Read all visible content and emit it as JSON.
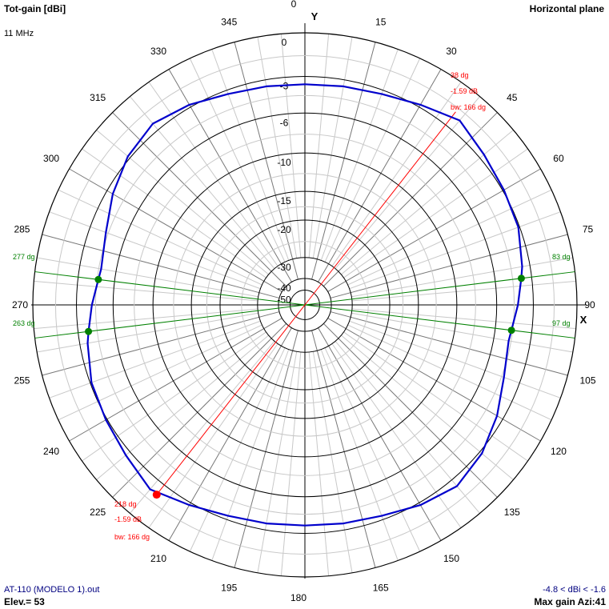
{
  "header": {
    "title": "Tot-gain [dBi]",
    "frequency": "11 MHz",
    "plane": "Horizontal plane"
  },
  "footer": {
    "filename": "AT-110 (MODELO 1).out",
    "elevation": "Elev.= 53",
    "range": "-4.8 < dBi < -1.6",
    "max_gain": "Max gain Azi:41"
  },
  "axis_labels": {
    "y": "Y",
    "x": "X"
  },
  "azimuth_ticks": [
    "0",
    "15",
    "30",
    "45",
    "60",
    "75",
    "90",
    "105",
    "120",
    "135",
    "150",
    "165",
    "180",
    "195",
    "210",
    "225",
    "240",
    "255",
    "270",
    "285",
    "300",
    "315",
    "330",
    "345"
  ],
  "radial_ticks": [
    "0",
    "-3",
    "-6",
    "-10",
    "-15",
    "-20",
    "-30",
    "-40",
    "-50"
  ],
  "markers": {
    "max_red": {
      "angle": "38 dg",
      "level": "-1.59 dB",
      "bw": "bw: 166 dg"
    },
    "back_red": {
      "angle": "218 dg",
      "level": "-1.59 dB",
      "bw": "bw: 166 dg"
    },
    "green": [
      "277 dg",
      "83 dg",
      "263 dg",
      "97 dg"
    ]
  },
  "colors": {
    "pattern": "#0000cc",
    "grid": "#000000",
    "red_marker": "#ff0000",
    "green_marker": "#008000",
    "footer_text": "#000080"
  },
  "chart_data": {
    "type": "polar",
    "title": "Tot-gain [dBi]",
    "plane": "Horizontal plane",
    "frequency_mhz": 11,
    "elevation_deg": 53,
    "radial_scale_db": [
      0,
      -3,
      -6,
      -10,
      -15,
      -20,
      -30,
      -40,
      -50
    ],
    "azimuth_deg": [
      0,
      10,
      20,
      30,
      40,
      50,
      60,
      70,
      80,
      83,
      90,
      97,
      100,
      110,
      120,
      130,
      140,
      150,
      160,
      170,
      180,
      190,
      200,
      210,
      220,
      230,
      240,
      250,
      260,
      263,
      270,
      277,
      280,
      290,
      300,
      310,
      320,
      330,
      340,
      350
    ],
    "gain_dbi": [
      -3.6,
      -3.5,
      -3.3,
      -2.8,
      -2.1,
      -2.6,
      -2.9,
      -3.1,
      -3.6,
      -3.8,
      -4.2,
      -4.6,
      -4.7,
      -4.3,
      -3.5,
      -2.8,
      -2.4,
      -2.8,
      -3.3,
      -3.5,
      -3.6,
      -3.5,
      -3.3,
      -2.8,
      -2.1,
      -2.6,
      -2.9,
      -3.1,
      -3.6,
      -3.8,
      -4.2,
      -4.6,
      -4.7,
      -4.3,
      -3.5,
      -2.8,
      -2.4,
      -2.8,
      -3.3,
      -3.5
    ],
    "max_gain_azimuth_deg": 41,
    "gain_range_dbi": [
      -4.8,
      -1.6
    ],
    "beamwidth_deg": 166,
    "half_power_points_deg": [
      277,
      83,
      263,
      97
    ]
  }
}
